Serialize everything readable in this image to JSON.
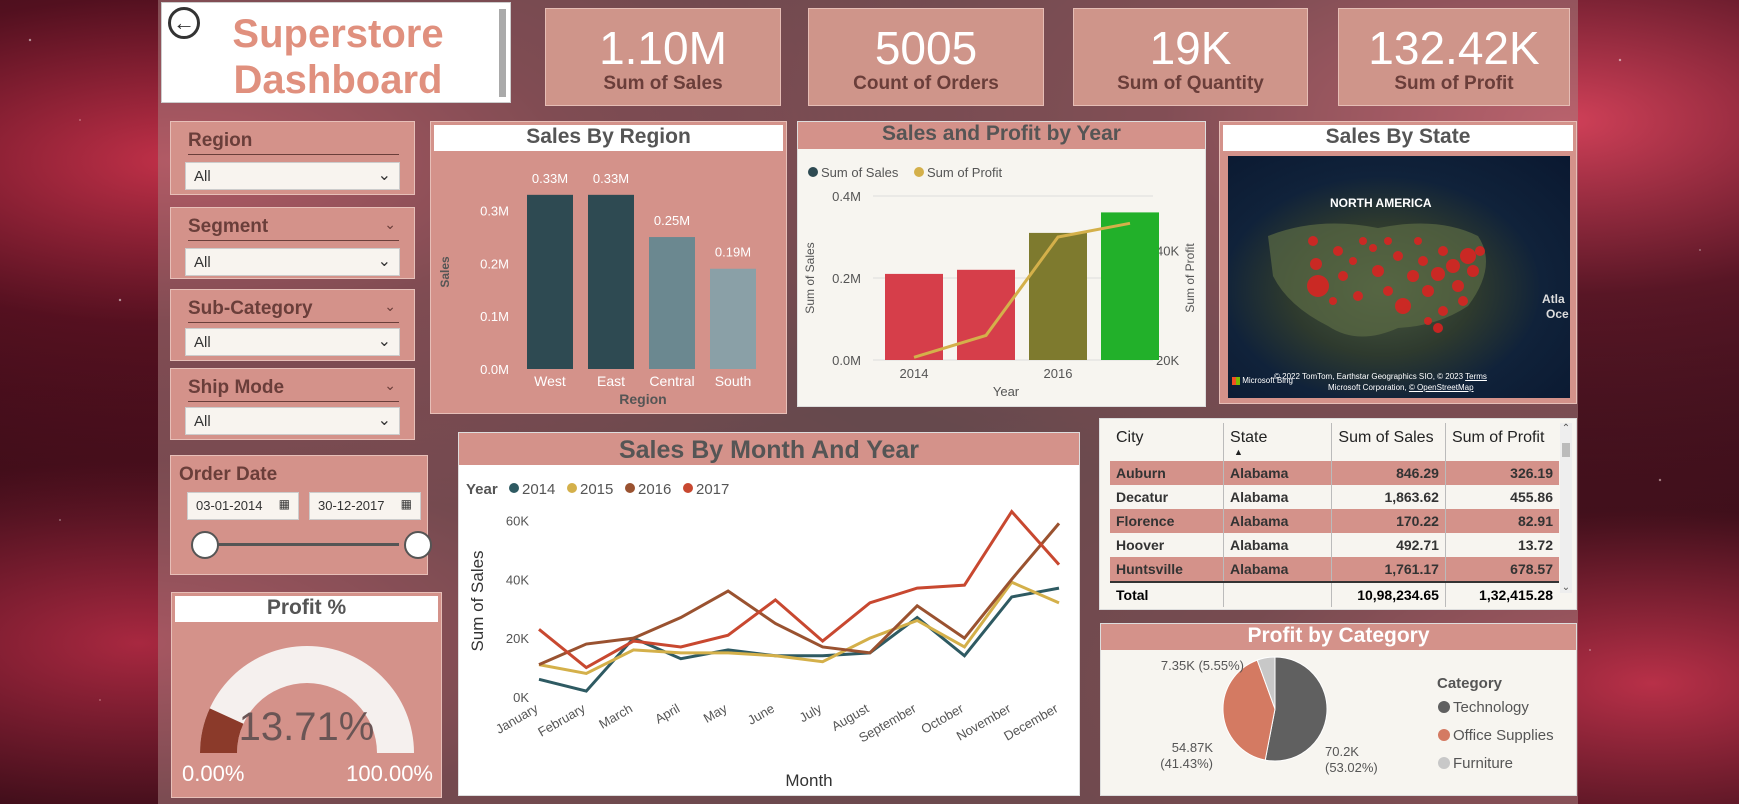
{
  "header": {
    "title_line1": "Superstore",
    "title_line2": "Dashboard",
    "back_icon": "arrow-left-circle-icon"
  },
  "kpis": [
    {
      "value": "1.10M",
      "label": "Sum of Sales"
    },
    {
      "value": "5005",
      "label": "Count of Orders"
    },
    {
      "value": "19K",
      "label": "Sum of Quantity"
    },
    {
      "value": "132.42K",
      "label": "Sum of Profit"
    }
  ],
  "slicers": {
    "region": {
      "label": "Region",
      "value": "All"
    },
    "segment": {
      "label": "Segment",
      "value": "All"
    },
    "subcategory": {
      "label": "Sub-Category",
      "value": "All"
    },
    "shipmode": {
      "label": "Ship Mode",
      "value": "All"
    }
  },
  "order_date": {
    "label": "Order Date",
    "start": "03-01-2014",
    "end": "30-12-2017"
  },
  "profit_gauge": {
    "title": "Profit %",
    "value_text": "13.71%",
    "value": 13.71,
    "min_label": "0.00%",
    "max_label": "100.00%",
    "colors": {
      "fill": "#8b3a2a",
      "track": "#f5f0ee"
    }
  },
  "region_chart_title": "Sales By Region",
  "year_chart_title": "Sales and Profit by Year",
  "state_map": {
    "title": "Sales By State",
    "continent_label": "NORTH AMERICA",
    "ocean_label_1": "Atla",
    "ocean_label_2": "Oce",
    "attribution_1": "© 2022 TomTom, Earthstar Geographics SIO, © 2023",
    "attribution_terms": "Terms",
    "attribution_2": "Microsoft Corporation,",
    "attribution_osm": "© OpenStreetMap",
    "bing": "Microsoft Bing"
  },
  "month_chart_title": "Sales By Month And Year",
  "table": {
    "headers": [
      "City",
      "State",
      "Sum of Sales",
      "Sum of Profit"
    ],
    "rows": [
      [
        "Auburn",
        "Alabama",
        "846.29",
        "326.19"
      ],
      [
        "Decatur",
        "Alabama",
        "1,863.62",
        "455.86"
      ],
      [
        "Florence",
        "Alabama",
        "170.22",
        "82.91"
      ],
      [
        "Hoover",
        "Alabama",
        "492.71",
        "13.72"
      ],
      [
        "Huntsville",
        "Alabama",
        "1,761.17",
        "678.57"
      ]
    ],
    "total": [
      "Total",
      "",
      "10,98,234.65",
      "1,32,415.28"
    ]
  },
  "category_chart_title": "Profit by Category",
  "chart_data": [
    {
      "type": "bar",
      "title": "Sales By Region",
      "xlabel": "Region",
      "ylabel": "Sales",
      "categories": [
        "West",
        "East",
        "Central",
        "South"
      ],
      "values": [
        0.33,
        0.33,
        0.25,
        0.19
      ],
      "data_labels": [
        "0.33M",
        "0.33M",
        "0.25M",
        "0.19M"
      ],
      "y_ticks": [
        "0.0M",
        "0.1M",
        "0.2M",
        "0.3M"
      ],
      "ylim": [
        0,
        0.36
      ],
      "colors": [
        "#2e4a52",
        "#2e4a52",
        "#6b8890",
        "#8aa0a7"
      ]
    },
    {
      "type": "bar",
      "title": "Sales and Profit by Year",
      "xlabel": "Year",
      "ylabel": "Sum of Sales",
      "y2label": "Sum of Profit",
      "categories": [
        "2014",
        "2015",
        "2016",
        "2017"
      ],
      "x_tick_labels": [
        "2014",
        "",
        "2016",
        ""
      ],
      "series": [
        {
          "name": "Sum of Sales",
          "values": [
            0.21,
            0.22,
            0.31,
            0.36
          ],
          "colors": [
            "#d63e4a",
            "#d63e4a",
            "#7e7a2e",
            "#22b02a"
          ]
        },
        {
          "name": "Sum of Profit",
          "values": [
            20.5,
            24.5,
            42.5,
            45
          ],
          "color": "#d4b04a"
        }
      ],
      "y_ticks": [
        "0.0M",
        "0.2M",
        "0.4M"
      ],
      "ylim": [
        0,
        0.4
      ],
      "y2_ticks": [
        "20K",
        "40K"
      ],
      "y2lim": [
        20,
        50
      ],
      "legend_colors": [
        "#2e4a52",
        "#d4b04a"
      ]
    },
    {
      "type": "line",
      "title": "Sales By Month And Year",
      "xlabel": "Month",
      "ylabel": "Sum of Sales",
      "legend_title": "Year",
      "categories": [
        "January",
        "February",
        "March",
        "April",
        "May",
        "June",
        "July",
        "August",
        "September",
        "October",
        "November",
        "December"
      ],
      "y_ticks": [
        "0K",
        "20K",
        "40K",
        "60K"
      ],
      "ylim": [
        0,
        70
      ],
      "series": [
        {
          "name": "2014",
          "color": "#2e5a62",
          "values": [
            6,
            2,
            20,
            13,
            16,
            14,
            14,
            15,
            27,
            14,
            34,
            37
          ]
        },
        {
          "name": "2015",
          "color": "#d4b04a",
          "values": [
            11,
            8,
            16,
            15,
            15,
            14,
            12,
            20,
            26,
            17,
            39,
            32
          ]
        },
        {
          "name": "2016",
          "color": "#9a5230",
          "values": [
            11,
            18,
            20,
            27,
            36,
            25,
            17,
            15,
            31,
            20,
            40,
            59
          ]
        },
        {
          "name": "2017",
          "color": "#c84830",
          "values": [
            23,
            10,
            19,
            17,
            21,
            33,
            19,
            32,
            37,
            38,
            63,
            45
          ]
        }
      ]
    },
    {
      "type": "pie",
      "title": "Profit by Category",
      "legend_title": "Category",
      "labels": [
        "Technology",
        "Office Supplies",
        "Furniture"
      ],
      "values": [
        70.2,
        54.87,
        7.35
      ],
      "percent": [
        53.02,
        41.43,
        5.55
      ],
      "data_labels": [
        "70.2K (53.02%)",
        "54.87K (41.43%)",
        "7.35K (5.55%)"
      ],
      "colors": [
        "#606060",
        "#d47a62",
        "#c8c8c8"
      ]
    }
  ]
}
